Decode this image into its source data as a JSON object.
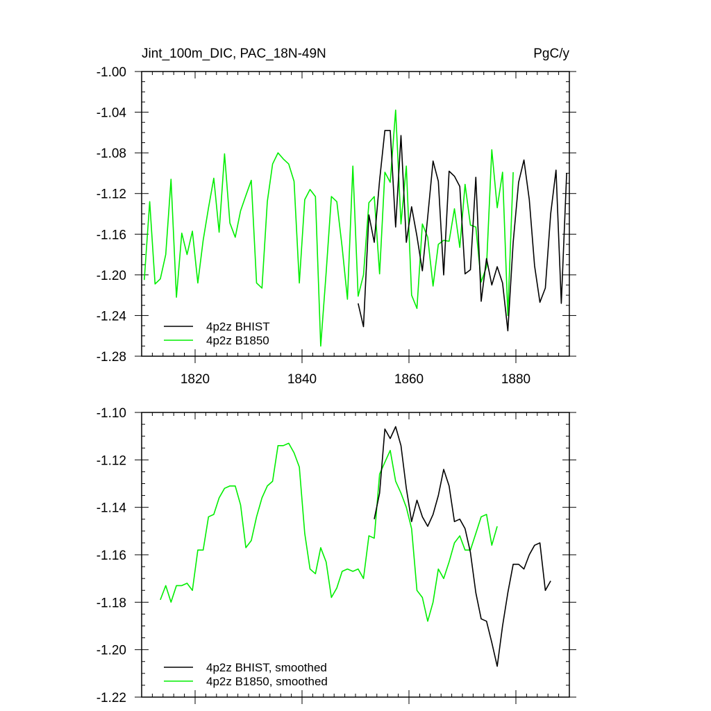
{
  "figure": {
    "title_left": "Jint_100m_DIC, PAC_18N-49N",
    "title_right": "PgC/y"
  },
  "colors": {
    "bhist": "#000000",
    "b1850": "#00ee00",
    "axis": "#000000",
    "background": "#ffffff"
  },
  "chart_data": [
    {
      "type": "line",
      "title": "Jint_100m_DIC, PAC_18N-49N",
      "unit_label": "PgC/y",
      "xlim": [
        1810,
        1890
      ],
      "ylim": [
        -1.28,
        -1.0
      ],
      "x_ticks": [
        1820,
        1840,
        1860,
        1880
      ],
      "x_tick_labels": [
        "1820",
        "1840",
        "1860",
        "1880"
      ],
      "y_ticks": [
        -1.28,
        -1.24,
        -1.2,
        -1.16,
        -1.12,
        -1.08,
        -1.04,
        -1.0
      ],
      "y_tick_labels": [
        "-1.28",
        "-1.24",
        "-1.20",
        "-1.16",
        "-1.12",
        "-1.08",
        "-1.04",
        "-1.00"
      ],
      "grid": false,
      "legend": "bottom-left",
      "series": [
        {
          "name": "4p2z BHIST",
          "color": "#000000",
          "x_start": 1850.5,
          "values": [
            -1.228,
            -1.251,
            -1.141,
            -1.168,
            -1.107,
            -1.058,
            -1.058,
            -1.153,
            -1.063,
            -1.168,
            -1.133,
            -1.162,
            -1.196,
            -1.143,
            -1.088,
            -1.108,
            -1.2,
            -1.098,
            -1.103,
            -1.113,
            -1.199,
            -1.195,
            -1.104,
            -1.226,
            -1.184,
            -1.21,
            -1.192,
            -1.208,
            -1.255,
            -1.168,
            -1.109,
            -1.087,
            -1.126,
            -1.191,
            -1.227,
            -1.213,
            -1.14,
            -1.097,
            -1.228,
            -1.1
          ]
        },
        {
          "name": "4p2z B1850",
          "color": "#00ee00",
          "x_start": 1810.5,
          "values": [
            -1.205,
            -1.128,
            -1.209,
            -1.204,
            -1.18,
            -1.106,
            -1.222,
            -1.159,
            -1.18,
            -1.157,
            -1.208,
            -1.166,
            -1.134,
            -1.105,
            -1.158,
            -1.081,
            -1.149,
            -1.163,
            -1.137,
            -1.122,
            -1.107,
            -1.208,
            -1.213,
            -1.128,
            -1.091,
            -1.08,
            -1.086,
            -1.091,
            -1.108,
            -1.208,
            -1.126,
            -1.116,
            -1.123,
            -1.27,
            -1.198,
            -1.123,
            -1.128,
            -1.173,
            -1.224,
            -1.093,
            -1.221,
            -1.2,
            -1.129,
            -1.123,
            -1.199,
            -1.099,
            -1.109,
            -1.038,
            -1.15,
            -1.093,
            -1.22,
            -1.233,
            -1.15,
            -1.163,
            -1.211,
            -1.17,
            -1.166,
            -1.167,
            -1.135,
            -1.173,
            -1.111,
            -1.151,
            -1.153,
            -1.207,
            -1.192,
            -1.077,
            -1.134,
            -1.099,
            -1.24,
            -1.099
          ]
        }
      ]
    },
    {
      "type": "line",
      "title": "",
      "xlim": [
        1810,
        1890
      ],
      "ylim": [
        -1.22,
        -1.1
      ],
      "x_ticks": [
        1820,
        1840,
        1860,
        1880
      ],
      "x_tick_labels": [],
      "y_ticks": [
        -1.22,
        -1.2,
        -1.18,
        -1.16,
        -1.14,
        -1.12,
        -1.1
      ],
      "y_tick_labels": [
        "-1.22",
        "-1.20",
        "-1.18",
        "-1.16",
        "-1.14",
        "-1.12",
        "-1.10"
      ],
      "grid": false,
      "legend": "bottom-left",
      "series": [
        {
          "name": "4p2z BHIST, smoothed",
          "color": "#000000",
          "x_start": 1853.5,
          "values": [
            -1.145,
            -1.134,
            -1.107,
            -1.111,
            -1.106,
            -1.114,
            -1.132,
            -1.146,
            -1.137,
            -1.144,
            -1.148,
            -1.143,
            -1.135,
            -1.124,
            -1.131,
            -1.146,
            -1.145,
            -1.149,
            -1.159,
            -1.176,
            -1.187,
            -1.188,
            -1.197,
            -1.207,
            -1.19,
            -1.176,
            -1.164,
            -1.164,
            -1.166,
            -1.16,
            -1.156,
            -1.155,
            -1.175,
            -1.171
          ]
        },
        {
          "name": "4p2z B1850, smoothed",
          "color": "#00ee00",
          "x_start": 1813.5,
          "values": [
            -1.179,
            -1.173,
            -1.18,
            -1.173,
            -1.173,
            -1.172,
            -1.175,
            -1.158,
            -1.158,
            -1.144,
            -1.143,
            -1.136,
            -1.132,
            -1.131,
            -1.131,
            -1.139,
            -1.157,
            -1.154,
            -1.144,
            -1.136,
            -1.131,
            -1.129,
            -1.114,
            -1.114,
            -1.113,
            -1.117,
            -1.123,
            -1.151,
            -1.166,
            -1.168,
            -1.157,
            -1.163,
            -1.178,
            -1.174,
            -1.167,
            -1.166,
            -1.167,
            -1.166,
            -1.17,
            -1.152,
            -1.153,
            -1.126,
            -1.121,
            -1.116,
            -1.129,
            -1.134,
            -1.14,
            -1.149,
            -1.175,
            -1.178,
            -1.188,
            -1.18,
            -1.166,
            -1.17,
            -1.163,
            -1.155,
            -1.152,
            -1.158,
            -1.158,
            -1.151,
            -1.144,
            -1.143,
            -1.156,
            -1.148
          ]
        }
      ]
    }
  ]
}
